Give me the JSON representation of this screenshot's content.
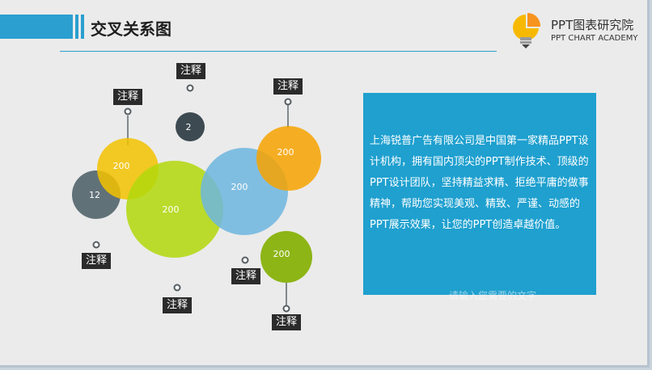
{
  "header": {
    "title": "交叉关系图",
    "logo_name": "PPT图表研究院",
    "logo_subtitle": "PPT CHART ACADEMY"
  },
  "diagram": {
    "callout_label": "注释",
    "circles": [
      {
        "label": "12",
        "color": "#5a6a72"
      },
      {
        "label": "200",
        "color": "#f3c200"
      },
      {
        "label": "2",
        "color": "#3d4a51"
      },
      {
        "label": "200",
        "color": "#b2d80b"
      },
      {
        "label": "200",
        "color": "#6db6df"
      },
      {
        "label": "200",
        "color": "#f7a300"
      },
      {
        "label": "200",
        "color": "#8db516"
      }
    ]
  },
  "textbox": {
    "body": "上海锐普广告有限公司是中国第一家精品PPT设计机构，拥有国内顶尖的PPT制作技术、顶级的PPT设计团队，坚持精益求精、拒绝平庸的做事精神，帮助您实现美观、精致、严谨、动感的PPT展示效果，让您的PPT创造卓越价值。",
    "overflow_text": "请输入您需要的文字"
  },
  "colors": {
    "accent": "#2a9fd0",
    "background": "#ebebeb",
    "callout_bg": "#2b2b2b"
  }
}
